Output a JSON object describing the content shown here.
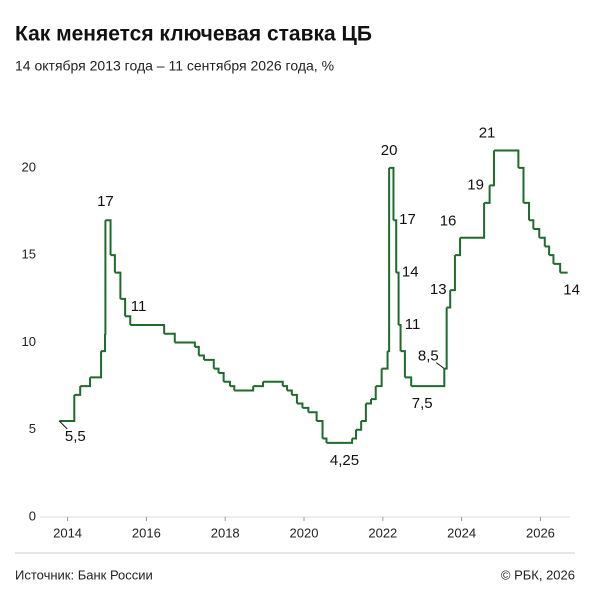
{
  "chart_data": {
    "type": "line",
    "step": true,
    "title": "Как меняется ключевая ставка ЦБ",
    "subtitle": "14 октября 2013 года – 11 сентября 2026 года, %",
    "source": "Источник: Банк России",
    "copyright": "© РБК, 2026",
    "color": "#1f6b2c",
    "x": [
      2013.79,
      2014.17,
      2014.32,
      2014.57,
      2014.85,
      2014.95,
      2014.96,
      2015.09,
      2015.2,
      2015.34,
      2015.46,
      2015.59,
      2016.45,
      2016.72,
      2017.23,
      2017.33,
      2017.46,
      2017.71,
      2017.83,
      2017.96,
      2018.12,
      2018.23,
      2018.71,
      2018.96,
      2019.46,
      2019.57,
      2019.69,
      2019.82,
      2019.96,
      2020.11,
      2020.32,
      2020.47,
      2020.57,
      2021.22,
      2021.32,
      2021.45,
      2021.57,
      2021.7,
      2021.82,
      2021.97,
      2022.12,
      2022.16,
      2022.27,
      2022.34,
      2022.4,
      2022.45,
      2022.56,
      2022.72,
      2023.56,
      2023.62,
      2023.71,
      2023.83,
      2023.96,
      2024.57,
      2024.71,
      2024.82,
      2025.44,
      2025.57,
      2025.71,
      2025.82,
      2025.97,
      2026.11,
      2026.22,
      2026.33,
      2026.5,
      2026.69
    ],
    "values": [
      5.5,
      7,
      7.5,
      8,
      9.5,
      10.5,
      17,
      15,
      14,
      12.5,
      11.5,
      11,
      10.5,
      10,
      9.75,
      9.25,
      9,
      8.5,
      8.25,
      7.75,
      7.5,
      7.25,
      7.5,
      7.75,
      7.5,
      7.25,
      7,
      6.5,
      6.25,
      6,
      5.5,
      4.5,
      4.25,
      4.5,
      5,
      5.5,
      6.5,
      6.75,
      7.5,
      8.5,
      9.5,
      20,
      17,
      14,
      11,
      9.5,
      8,
      7.5,
      8.5,
      12,
      13,
      15,
      16,
      18,
      19,
      21,
      20,
      18,
      17,
      16.5,
      16,
      15.5,
      15,
      14.5,
      14,
      14
    ],
    "annotations": [
      {
        "x": 2013.79,
        "value": 5.5,
        "label": "5,5"
      },
      {
        "x": 2014.96,
        "value": 17
      },
      {
        "x": 2015.8,
        "value": 11
      },
      {
        "x": 2020.9,
        "value": 4.25,
        "label": "4,25"
      },
      {
        "x": 2022.16,
        "value": 20
      },
      {
        "x": 2022.27,
        "value": 17
      },
      {
        "x": 2022.34,
        "value": 14
      },
      {
        "x": 2022.4,
        "value": 11
      },
      {
        "x": 2023.0,
        "value": 7.5,
        "label": "7,5"
      },
      {
        "x": 2023.56,
        "value": 8.5,
        "label": "8,5"
      },
      {
        "x": 2023.71,
        "value": 13
      },
      {
        "x": 2023.96,
        "value": 16
      },
      {
        "x": 2024.71,
        "value": 19
      },
      {
        "x": 2025.0,
        "value": 21
      },
      {
        "x": 2026.69,
        "value": 14
      }
    ],
    "xlim": [
      2013.3,
      2026.75
    ],
    "xticks": [
      2014,
      2016,
      2018,
      2020,
      2022,
      2024,
      2026
    ],
    "ylim": [
      0,
      22
    ],
    "yticks": [
      0,
      5,
      10,
      15,
      20
    ],
    "grid": false
  }
}
